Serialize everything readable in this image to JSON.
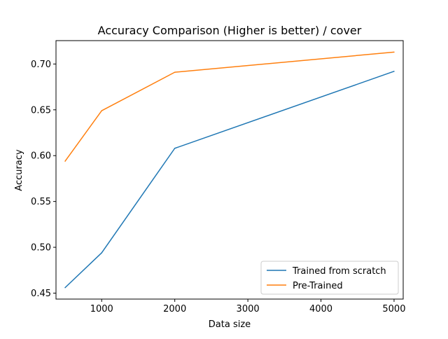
{
  "chart_data": {
    "type": "line",
    "title": "Accuracy Comparison (Higher is better) / cover",
    "xlabel": "Data size",
    "ylabel": "Accuracy",
    "xlim": [
      375,
      5125
    ],
    "ylim": [
      0.4435,
      0.7255
    ],
    "x_ticks": [
      1000,
      2000,
      3000,
      4000,
      5000
    ],
    "x_tick_labels": [
      "1000",
      "2000",
      "3000",
      "4000",
      "5000"
    ],
    "y_ticks": [
      0.45,
      0.5,
      0.55,
      0.6,
      0.65,
      0.7
    ],
    "y_tick_labels": [
      "0.45",
      "0.50",
      "0.55",
      "0.60",
      "0.65",
      "0.70"
    ],
    "grid": false,
    "legend_position": "lower-right",
    "x": [
      500,
      1000,
      2000,
      5000
    ],
    "series": [
      {
        "name": "Trained from scratch",
        "color": "#1f77b4",
        "values": [
          0.456,
          0.494,
          0.608,
          0.692
        ]
      },
      {
        "name": "Pre-Trained",
        "color": "#ff7f0e",
        "values": [
          0.594,
          0.649,
          0.691,
          0.713
        ]
      }
    ]
  }
}
